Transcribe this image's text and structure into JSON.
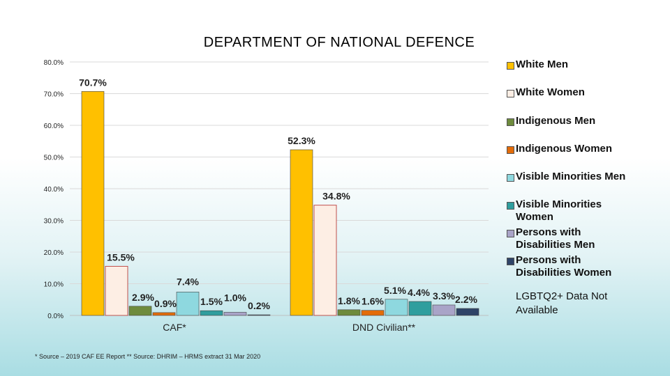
{
  "chart_data": {
    "type": "bar",
    "title": "DEPARTMENT  OF NATIONAL  DEFENCE",
    "categories": [
      "CAF*",
      "DND Civilian**"
    ],
    "ylim": [
      0,
      80
    ],
    "yticks": [
      "0.0%",
      "10.0%",
      "20.0%",
      "30.0%",
      "40.0%",
      "50.0%",
      "60.0%",
      "70.0%",
      "80.0%"
    ],
    "grid": true,
    "legend_position": "right",
    "series": [
      {
        "name": "White Men",
        "color": "#FFC000",
        "values": [
          70.7,
          52.3
        ],
        "labels": [
          "70.7%",
          "52.3%"
        ]
      },
      {
        "name": "White Women",
        "color": "#FDEEE4",
        "values": [
          15.5,
          34.8
        ],
        "labels": [
          "15.5%",
          "34.8%"
        ]
      },
      {
        "name": "Indigenous Men",
        "color": "#6E8B3D",
        "values": [
          2.9,
          1.8
        ],
        "labels": [
          "2.9%",
          "1.8%"
        ]
      },
      {
        "name": "Indigenous Women",
        "color": "#E36C0A",
        "values": [
          0.9,
          1.6
        ],
        "labels": [
          "0.9%",
          "1.6%"
        ]
      },
      {
        "name": "Visible Minorities Men",
        "color": "#8ED8DF",
        "values": [
          7.4,
          5.1
        ],
        "labels": [
          "7.4%",
          "5.1%"
        ]
      },
      {
        "name": "Visible Minorities Women",
        "color": "#2F9E9E",
        "values": [
          1.5,
          4.4
        ],
        "labels": [
          "1.5%",
          "4.4%"
        ]
      },
      {
        "name": "Persons with Disabilities Men",
        "color": "#A9A4C8",
        "values": [
          1.0,
          3.3
        ],
        "labels": [
          "1.0%",
          "3.3%"
        ]
      },
      {
        "name": "Persons with Disabilities Women",
        "color": "#2F4468",
        "values": [
          0.2,
          2.2
        ],
        "labels": [
          "0.2%",
          "2.2%"
        ]
      }
    ]
  },
  "legend_note": "LGBTQ2+ Data Not Available",
  "footnote": "* Source – 2019 CAF EE Report  ** Source: DHRIM – HRMS extract 31 Mar 2020"
}
